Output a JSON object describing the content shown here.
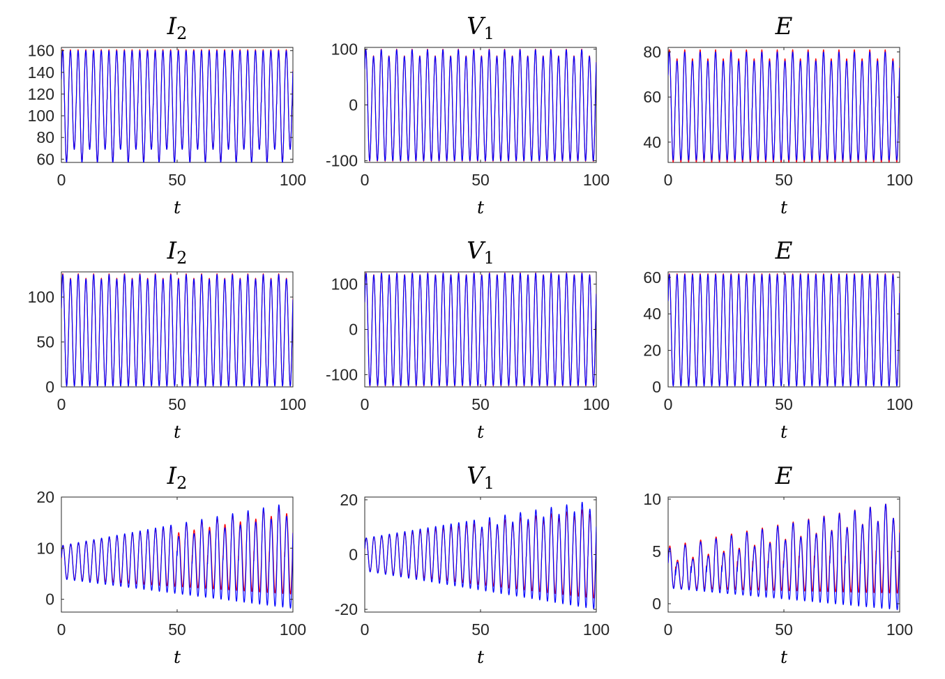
{
  "chart_data": [
    {
      "type": "line",
      "title": "I",
      "title_sub": "2",
      "xlabel": "t",
      "xlim": [
        0,
        100
      ],
      "ylim": [
        57,
        163
      ],
      "xticks": [
        0,
        50,
        100
      ],
      "xtick_labels": [
        "0",
        "50",
        "100"
      ],
      "yticks": [
        60,
        80,
        100,
        120,
        140,
        160
      ],
      "ytick_labels": [
        "60",
        "80",
        "100",
        "120",
        "140",
        "160"
      ],
      "series": [
        {
          "color": "#ff0000",
          "period": 3.33,
          "min": 57,
          "max": 161,
          "max_end": 161,
          "alt_peak_drop": 0,
          "alt_trough_rise": 12,
          "alt_start": 0,
          "phase": 0.5
        },
        {
          "color": "#0000ff",
          "period": 3.33,
          "min": 57,
          "max": 160,
          "max_end": 160,
          "alt_peak_drop": 0,
          "alt_trough_rise": 12,
          "alt_start": 0,
          "phase": 0.5
        }
      ]
    },
    {
      "type": "line",
      "title": "V",
      "title_sub": "1",
      "xlabel": "t",
      "xlim": [
        0,
        100
      ],
      "ylim": [
        -103,
        103
      ],
      "xticks": [
        0,
        50,
        100
      ],
      "xtick_labels": [
        "0",
        "50",
        "100"
      ],
      "yticks": [
        -100,
        0,
        100
      ],
      "ytick_labels": [
        "-100",
        "0",
        "100"
      ],
      "series": [
        {
          "color": "#ff0000",
          "period": 3.33,
          "min": -101,
          "max": 100,
          "max_end": 100,
          "alt_peak_drop": 12,
          "alt_trough_rise": 0,
          "alt_start": 0,
          "phase": 0.7
        },
        {
          "color": "#0000ff",
          "period": 3.33,
          "min": -100,
          "max": 99,
          "max_end": 99,
          "alt_peak_drop": 12,
          "alt_trough_rise": 0,
          "alt_start": 0,
          "phase": 0.7
        }
      ]
    },
    {
      "type": "line",
      "title": "E",
      "title_sub": "",
      "xlabel": "t",
      "xlim": [
        0,
        100
      ],
      "ylim": [
        31,
        82
      ],
      "xticks": [
        0,
        50,
        100
      ],
      "xtick_labels": [
        "0",
        "50",
        "100"
      ],
      "yticks": [
        40,
        60,
        80
      ],
      "ytick_labels": [
        "40",
        "60",
        "80"
      ],
      "series": [
        {
          "color": "#ff0000",
          "period": 3.33,
          "min": 31,
          "max": 81,
          "max_end": 81,
          "alt_peak_drop": 4,
          "alt_trough_rise": 0,
          "alt_start": 0,
          "phase": 0.6
        },
        {
          "color": "#0000ff",
          "period": 3.33,
          "min": 32,
          "max": 80,
          "max_end": 80,
          "alt_peak_drop": 4,
          "alt_trough_rise": 0,
          "alt_start": 0,
          "phase": 0.6
        }
      ]
    },
    {
      "type": "line",
      "title": "I",
      "title_sub": "2",
      "xlabel": "t",
      "xlim": [
        0,
        100
      ],
      "ylim": [
        0,
        128
      ],
      "xticks": [
        0,
        50,
        100
      ],
      "xtick_labels": [
        "0",
        "50",
        "100"
      ],
      "yticks": [
        0,
        50,
        100
      ],
      "ytick_labels": [
        "0",
        "50",
        "100"
      ],
      "series": [
        {
          "color": "#ff0000",
          "period": 3.33,
          "min": 1,
          "max": 126,
          "max_end": 126,
          "alt_peak_drop": 5,
          "alt_trough_rise": 0,
          "alt_start": 0,
          "phase": 0.4
        },
        {
          "color": "#0000ff",
          "period": 3.33,
          "min": 1,
          "max": 125,
          "max_end": 125,
          "alt_peak_drop": 5,
          "alt_trough_rise": 0,
          "alt_start": 0,
          "phase": 0.4
        }
      ]
    },
    {
      "type": "line",
      "title": "V",
      "title_sub": "1",
      "xlabel": "t",
      "xlim": [
        0,
        100
      ],
      "ylim": [
        -127,
        127
      ],
      "xticks": [
        0,
        50,
        100
      ],
      "xtick_labels": [
        "0",
        "50",
        "100"
      ],
      "yticks": [
        -100,
        0,
        100
      ],
      "ytick_labels": [
        "-100",
        "0",
        "100"
      ],
      "series": [
        {
          "color": "#ff0000",
          "period": 3.33,
          "min": -125,
          "max": 125,
          "max_end": 125,
          "alt_peak_drop": 4,
          "alt_trough_rise": 0,
          "alt_start": 0,
          "phase": 0.5
        },
        {
          "color": "#0000ff",
          "period": 3.33,
          "min": -124,
          "max": 124,
          "max_end": 124,
          "alt_peak_drop": 4,
          "alt_trough_rise": 0,
          "alt_start": 0,
          "phase": 0.5
        }
      ]
    },
    {
      "type": "line",
      "title": "E",
      "title_sub": "",
      "xlabel": "t",
      "xlim": [
        0,
        100
      ],
      "ylim": [
        0,
        63
      ],
      "xticks": [
        0,
        50,
        100
      ],
      "xtick_labels": [
        "0",
        "50",
        "100"
      ],
      "yticks": [
        0,
        20,
        40,
        60
      ],
      "ytick_labels": [
        "0",
        "20",
        "40",
        "60"
      ],
      "series": [
        {
          "color": "#ff0000",
          "period": 3.33,
          "min": 0.5,
          "max": 62,
          "max_end": 62,
          "alt_peak_drop": 0,
          "alt_trough_rise": 0,
          "alt_start": 0,
          "phase": 0.55
        },
        {
          "color": "#0000ff",
          "period": 3.33,
          "min": 0.5,
          "max": 61.5,
          "max_end": 61.5,
          "alt_peak_drop": 0,
          "alt_trough_rise": 0,
          "alt_start": 0,
          "phase": 0.55
        }
      ]
    },
    {
      "type": "line",
      "title": "I",
      "title_sub": "2",
      "xlabel": "t",
      "xlim": [
        0,
        100
      ],
      "ylim": [
        -2.5,
        20
      ],
      "xticks": [
        0,
        50,
        100
      ],
      "xtick_labels": [
        "0",
        "50",
        "100"
      ],
      "yticks": [
        0,
        10,
        20
      ],
      "ytick_labels": [
        "0",
        "10",
        "20"
      ],
      "series": [
        {
          "color": "#ff0000",
          "period": 3.33,
          "min": 4,
          "min_end": 1,
          "max": 10.5,
          "max_end": 18.5,
          "alt_peak_drop": 1.5,
          "alt_trough_rise": 0,
          "alt_start": 50,
          "phase": 0.2
        },
        {
          "color": "#0000ff",
          "period": 3.33,
          "min": 4,
          "min_end": -1.8,
          "max": 10.5,
          "max_end": 19,
          "alt_peak_drop": 2.5,
          "alt_trough_rise": 0,
          "alt_start": 50,
          "phase": 0.25
        }
      ]
    },
    {
      "type": "line",
      "title": "V",
      "title_sub": "1",
      "xlabel": "t",
      "xlim": [
        0,
        100
      ],
      "ylim": [
        -21,
        21
      ],
      "xticks": [
        0,
        50,
        100
      ],
      "xtick_labels": [
        "0",
        "50",
        "100"
      ],
      "yticks": [
        -20,
        0,
        20
      ],
      "ytick_labels": [
        "-20",
        "0",
        "20"
      ],
      "series": [
        {
          "color": "#ff0000",
          "period": 3.33,
          "min": -6,
          "min_end": -16,
          "max": 6,
          "max_end": 17,
          "alt_peak_drop": 2,
          "alt_trough_rise": 0,
          "alt_start": 50,
          "phase": 0.3
        },
        {
          "color": "#0000ff",
          "period": 3.33,
          "min": -6,
          "min_end": -20,
          "max": 6,
          "max_end": 20,
          "alt_peak_drop": 3,
          "alt_trough_rise": 0,
          "alt_start": 50,
          "phase": 0.35
        }
      ]
    },
    {
      "type": "line",
      "title": "E",
      "title_sub": "",
      "xlabel": "t",
      "xlim": [
        0,
        100
      ],
      "ylim": [
        -0.8,
        10.2
      ],
      "xticks": [
        0,
        50,
        100
      ],
      "xtick_labels": [
        "0",
        "50",
        "100"
      ],
      "yticks": [
        0,
        5,
        10
      ],
      "ytick_labels": [
        "0",
        "5",
        "10"
      ],
      "series": [
        {
          "color": "#ff0000",
          "period": 3.33,
          "min": 1.5,
          "min_end": 1,
          "max": 5.5,
          "max_end": 9.8,
          "alt_peak_drop": 1.5,
          "alt_trough_rise": 0,
          "alt_start": 0,
          "phase": 0.2
        },
        {
          "color": "#0000ff",
          "period": 3.33,
          "min": 1.5,
          "min_end": -0.6,
          "max": 5.3,
          "max_end": 9.8,
          "alt_peak_drop": 1.5,
          "alt_trough_rise": 0,
          "alt_start": 0,
          "phase": 0.25
        }
      ]
    }
  ]
}
